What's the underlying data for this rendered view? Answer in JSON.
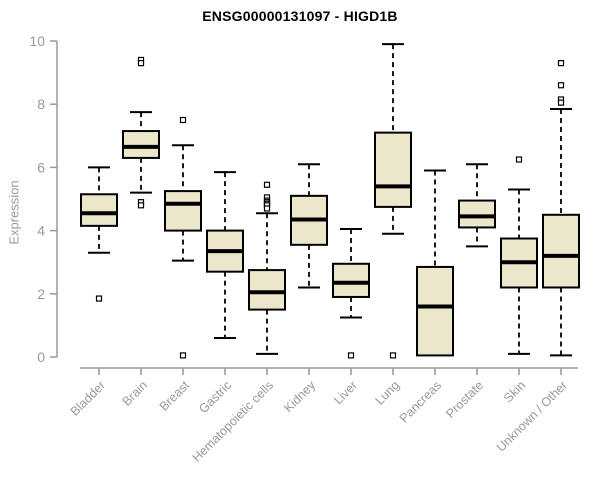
{
  "chart_data": {
    "type": "boxplot",
    "title": "ENSG00000131097 - HIGD1B",
    "ylabel": "Expression",
    "xlabel": "",
    "ylim": [
      0,
      10
    ],
    "yticks": [
      0,
      2,
      4,
      6,
      8,
      10
    ],
    "grid": false,
    "legend": "none",
    "categories": [
      "Bladder",
      "Brain",
      "Breast",
      "Gastric",
      "Hematopoietic cells",
      "Kidney",
      "Liver",
      "Lung",
      "Pancreas",
      "Prostate",
      "Skin",
      "Unknown / Other"
    ],
    "boxes": [
      {
        "category": "Bladder",
        "low": 3.3,
        "q1": 4.15,
        "median": 4.55,
        "q3": 5.15,
        "high": 6.0,
        "outliers": [
          1.85
        ]
      },
      {
        "category": "Brain",
        "low": 5.2,
        "q1": 6.3,
        "median": 6.65,
        "q3": 7.15,
        "high": 7.75,
        "outliers": [
          9.4,
          9.3,
          4.9,
          4.8
        ]
      },
      {
        "category": "Breast",
        "low": 3.05,
        "q1": 4.0,
        "median": 4.85,
        "q3": 5.25,
        "high": 6.7,
        "outliers": [
          7.5,
          0.05
        ]
      },
      {
        "category": "Gastric",
        "low": 0.6,
        "q1": 2.7,
        "median": 3.35,
        "q3": 4.0,
        "high": 5.85,
        "outliers": []
      },
      {
        "category": "Hematopoietic cells",
        "low": 0.1,
        "q1": 1.5,
        "median": 2.05,
        "q3": 2.75,
        "high": 4.55,
        "outliers": [
          5.45,
          5.05,
          4.95,
          4.9,
          4.85,
          4.8,
          4.7
        ]
      },
      {
        "category": "Kidney",
        "low": 2.2,
        "q1": 3.55,
        "median": 4.35,
        "q3": 5.1,
        "high": 6.1,
        "outliers": []
      },
      {
        "category": "Liver",
        "low": 1.25,
        "q1": 1.9,
        "median": 2.35,
        "q3": 2.95,
        "high": 4.05,
        "outliers": [
          0.05
        ]
      },
      {
        "category": "Lung",
        "low": 3.9,
        "q1": 4.75,
        "median": 5.4,
        "q3": 7.1,
        "high": 9.9,
        "outliers": [
          0.05
        ]
      },
      {
        "category": "Pancreas",
        "low": 0.05,
        "q1": 0.05,
        "median": 1.6,
        "q3": 2.85,
        "high": 5.9,
        "outliers": []
      },
      {
        "category": "Prostate",
        "low": 3.5,
        "q1": 4.1,
        "median": 4.45,
        "q3": 4.95,
        "high": 6.1,
        "outliers": []
      },
      {
        "category": "Skin",
        "low": 0.1,
        "q1": 2.2,
        "median": 3.0,
        "q3": 3.75,
        "high": 5.3,
        "outliers": [
          6.25
        ]
      },
      {
        "category": "Unknown / Other",
        "low": 0.05,
        "q1": 2.2,
        "median": 3.2,
        "q3": 4.5,
        "high": 7.85,
        "outliers": [
          9.3,
          8.6,
          8.15,
          8.05
        ]
      }
    ],
    "colors": {
      "box_fill": "#ece7cb",
      "box_border": "#000000",
      "median": "#000000",
      "whisker": "#000000",
      "outlier_fill": "#ffffff",
      "axis": "#999999",
      "tick_label": "#999999",
      "title": "#000000",
      "background": "#ffffff"
    }
  }
}
